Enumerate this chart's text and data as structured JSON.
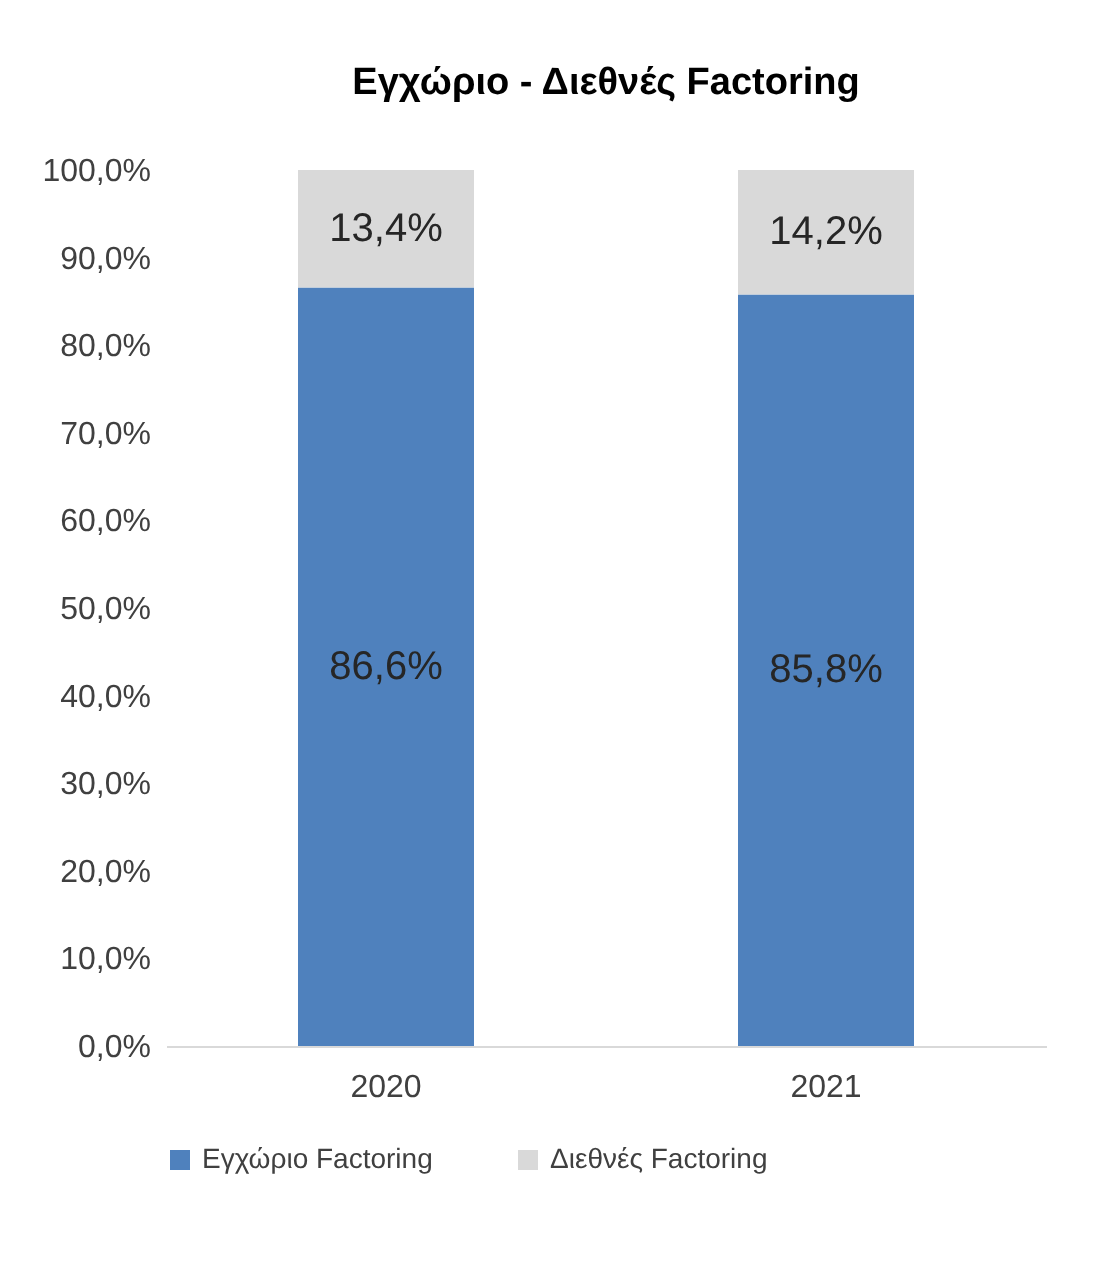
{
  "chart_data": {
    "type": "bar",
    "title": "Εγχώριο - Διεθνές Factoring",
    "stacked": true,
    "categories": [
      "2020",
      "2021"
    ],
    "series": [
      {
        "name": "Εγχώριο Factoring",
        "color": "#4f81bd",
        "values": [
          86.6,
          85.8
        ],
        "value_labels": [
          "86,6%",
          "85,8%"
        ]
      },
      {
        "name": "Διεθνές Factoring",
        "color": "#d9d9d9",
        "values": [
          13.4,
          14.2
        ],
        "value_labels": [
          "13,4%",
          "14,2%"
        ]
      }
    ],
    "ylim": [
      0,
      100
    ],
    "yticks": [
      {
        "value": 0,
        "label": "0,0%"
      },
      {
        "value": 10,
        "label": "10,0%"
      },
      {
        "value": 20,
        "label": "20,0%"
      },
      {
        "value": 30,
        "label": "30,0%"
      },
      {
        "value": 40,
        "label": "40,0%"
      },
      {
        "value": 50,
        "label": "50,0%"
      },
      {
        "value": 60,
        "label": "60,0%"
      },
      {
        "value": 70,
        "label": "70,0%"
      },
      {
        "value": 80,
        "label": "80,0%"
      },
      {
        "value": 90,
        "label": "90,0%"
      },
      {
        "value": 100,
        "label": "100,0%"
      }
    ],
    "grid": false,
    "legend": "bottom"
  }
}
